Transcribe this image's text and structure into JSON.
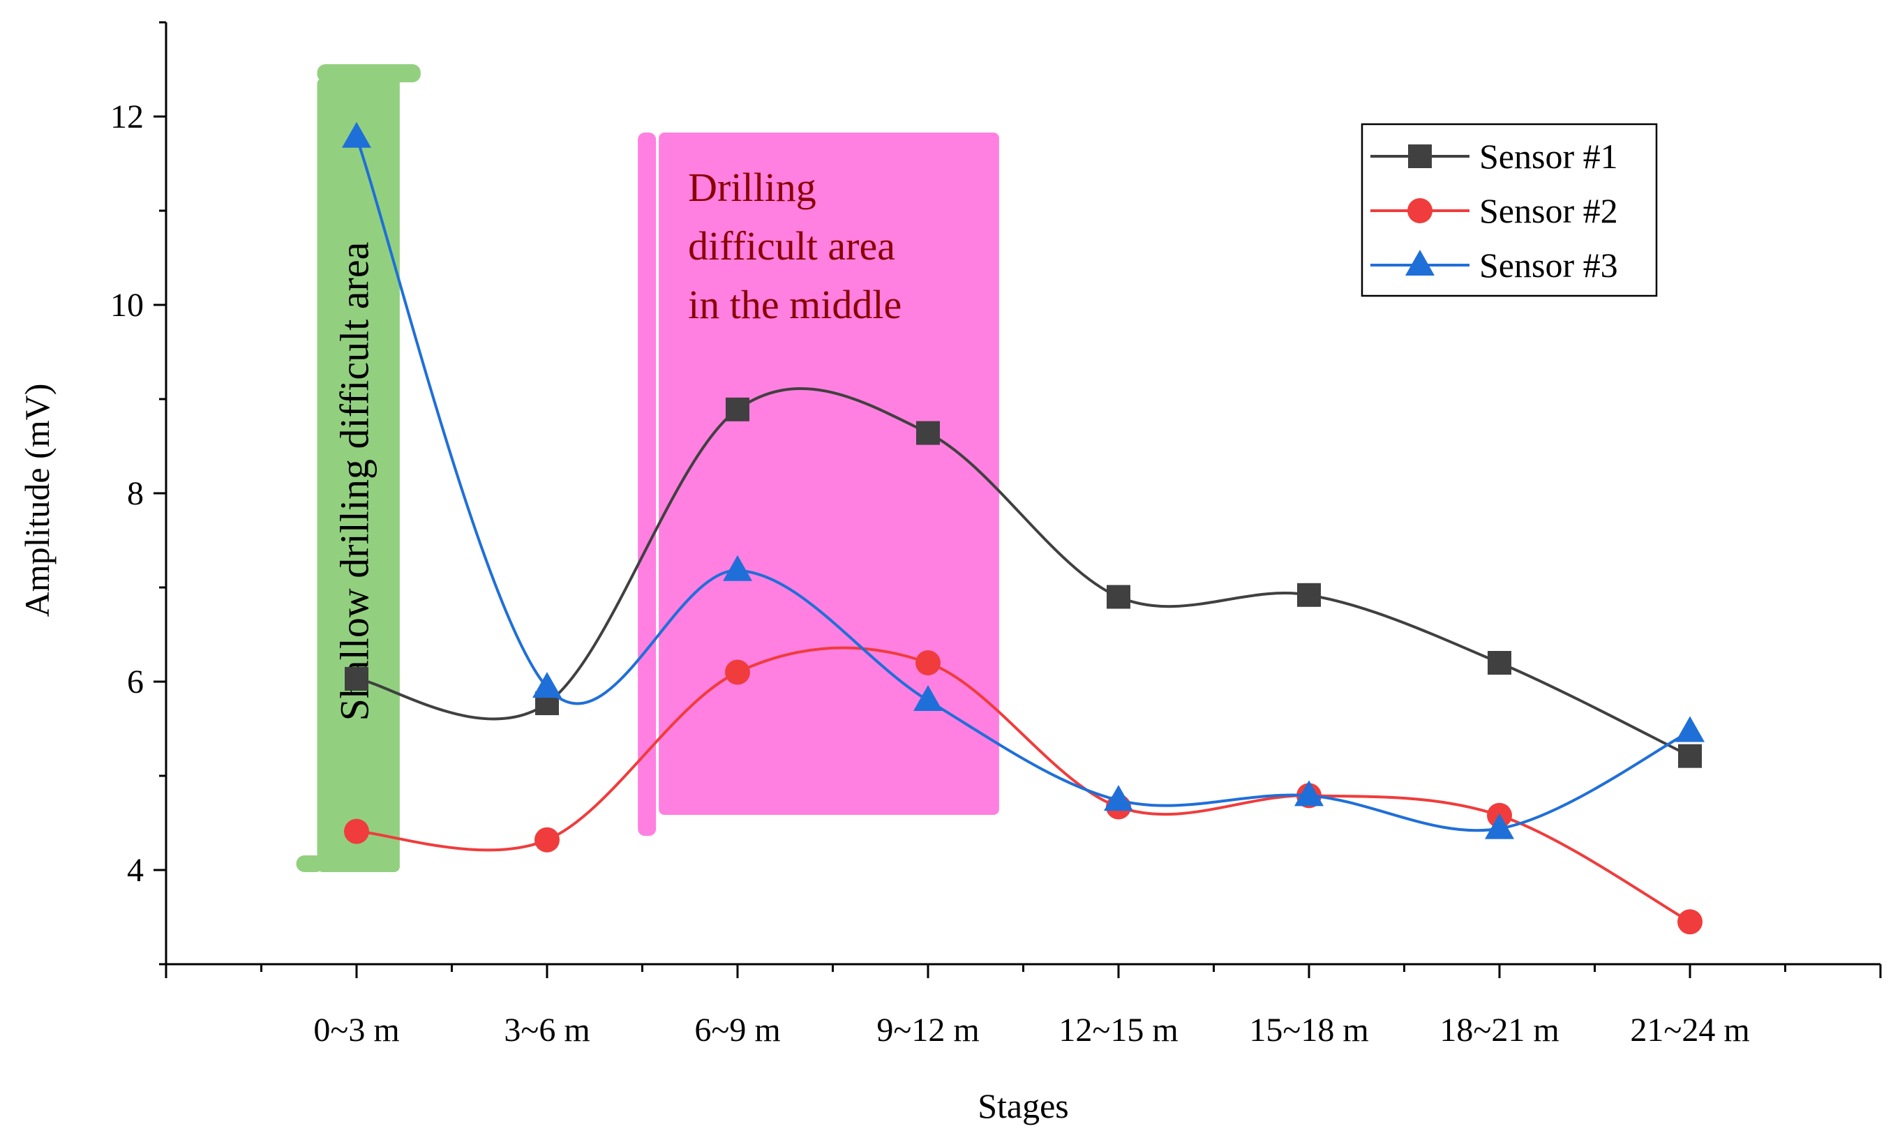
{
  "chart_data": {
    "type": "line",
    "title": "",
    "xlabel": "Stages",
    "ylabel": "Amplitude (mV)",
    "categories": [
      "0~3 m",
      "3~6 m",
      "6~9 m",
      "9~12 m",
      "12~15 m",
      "15~18 m",
      "18~21 m",
      "21~24 m"
    ],
    "ylim": [
      3,
      13
    ],
    "yticks": [
      4,
      6,
      8,
      10,
      12
    ],
    "grid": false,
    "legend_position": "top-right",
    "series": [
      {
        "name": "Sensor #1",
        "color": "#404040",
        "marker": "square",
        "values": [
          6.03,
          5.77,
          8.89,
          8.64,
          6.9,
          6.92,
          6.2,
          5.21
        ]
      },
      {
        "name": "Sensor #2",
        "color": "#f03c3c",
        "marker": "circle",
        "values": [
          4.41,
          4.32,
          6.1,
          6.2,
          4.67,
          4.79,
          4.58,
          3.45
        ]
      },
      {
        "name": "Sensor #3",
        "color": "#1f6fd8",
        "marker": "triangle",
        "values": [
          11.78,
          5.94,
          7.18,
          5.8,
          4.74,
          4.79,
          4.44,
          5.47
        ]
      }
    ],
    "annotations": [
      {
        "text": "Shallow drilling difficult area",
        "color": "#92d080",
        "text_color": "#000000",
        "range": [
          -0.5,
          0.3
        ]
      },
      {
        "text_lines": [
          "Drilling",
          "difficult area",
          "in the middle"
        ],
        "color": "#ff80e0",
        "text_color": "#8b0000",
        "range": [
          1.55,
          3.3
        ]
      }
    ]
  }
}
